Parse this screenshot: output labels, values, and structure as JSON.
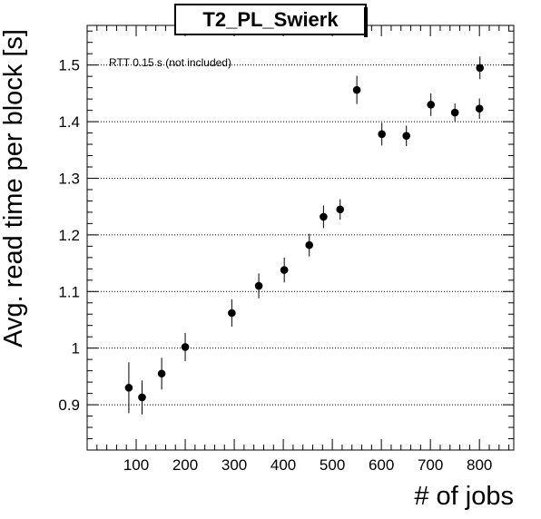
{
  "chart_data": {
    "type": "scatter",
    "title": "T2_PL_Swierk",
    "xlabel": "# of jobs",
    "ylabel": "Avg. read time per block [s]",
    "annotation": "RTT 0.15 s (not included)",
    "xlim": [
      0,
      870
    ],
    "ylim": [
      0.82,
      1.57
    ],
    "x_ticks": [
      100,
      200,
      300,
      400,
      500,
      600,
      700,
      800
    ],
    "x_tick_labels": [
      "100",
      "200",
      "300",
      "400",
      "500",
      "600",
      "700",
      "800"
    ],
    "y_ticks": [
      0.9,
      1.0,
      1.1,
      1.2,
      1.3,
      1.4,
      1.5
    ],
    "y_tick_labels": [
      "0.9",
      "1",
      "1.1",
      "1.2",
      "1.3",
      "1.4",
      "1.5"
    ],
    "grid": "horizontal-dotted",
    "points": [
      {
        "x": 85,
        "y": 0.93,
        "err": 0.045
      },
      {
        "x": 112,
        "y": 0.913,
        "err": 0.03
      },
      {
        "x": 152,
        "y": 0.955,
        "err": 0.028
      },
      {
        "x": 200,
        "y": 1.002,
        "err": 0.025
      },
      {
        "x": 295,
        "y": 1.062,
        "err": 0.024
      },
      {
        "x": 350,
        "y": 1.11,
        "err": 0.022
      },
      {
        "x": 402,
        "y": 1.138,
        "err": 0.022
      },
      {
        "x": 453,
        "y": 1.182,
        "err": 0.02
      },
      {
        "x": 482,
        "y": 1.232,
        "err": 0.02
      },
      {
        "x": 516,
        "y": 1.245,
        "err": 0.018
      },
      {
        "x": 550,
        "y": 1.456,
        "err": 0.025
      },
      {
        "x": 601,
        "y": 1.378,
        "err": 0.02
      },
      {
        "x": 651,
        "y": 1.375,
        "err": 0.018
      },
      {
        "x": 701,
        "y": 1.43,
        "err": 0.02
      },
      {
        "x": 750,
        "y": 1.416,
        "err": 0.016
      },
      {
        "x": 800,
        "y": 1.423,
        "err": 0.018
      },
      {
        "x": 801,
        "y": 1.495,
        "err": 0.02
      }
    ]
  }
}
